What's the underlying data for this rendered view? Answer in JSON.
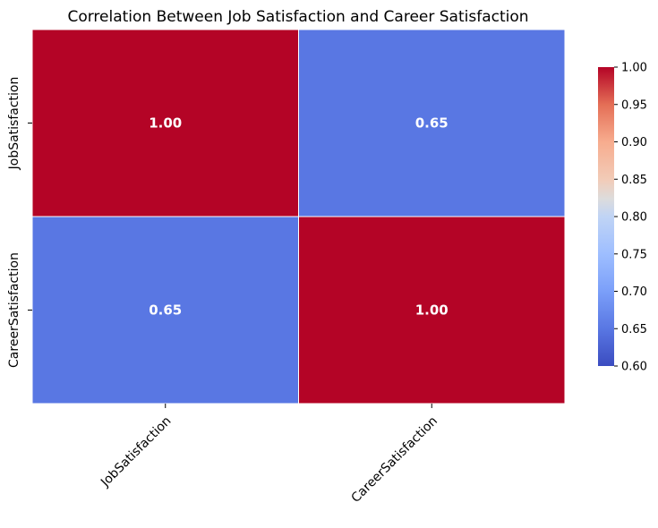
{
  "chart_data": {
    "type": "heatmap",
    "title": "Correlation Between Job Satisfaction and Career Satisfaction",
    "x_categories": [
      "JobSatisfaction",
      "CareerSatisfaction"
    ],
    "y_categories": [
      "JobSatisfaction",
      "CareerSatisfaction"
    ],
    "values": [
      [
        1.0,
        0.65
      ],
      [
        0.65,
        1.0
      ]
    ],
    "value_format": "2 decimals",
    "colormap": "coolwarm",
    "colorbar": {
      "min": 0.6,
      "max": 1.0,
      "ticks": [
        "0.60",
        "0.65",
        "0.70",
        "0.75",
        "0.80",
        "0.85",
        "0.90",
        "0.95",
        "1.00"
      ]
    },
    "colors": {
      "cell_high": "#b40426",
      "cell_mid": "#6282ea",
      "cell_border": "#ffffff",
      "annotation_text": "#ffffff"
    },
    "grid": false,
    "legend": "right colorbar"
  }
}
